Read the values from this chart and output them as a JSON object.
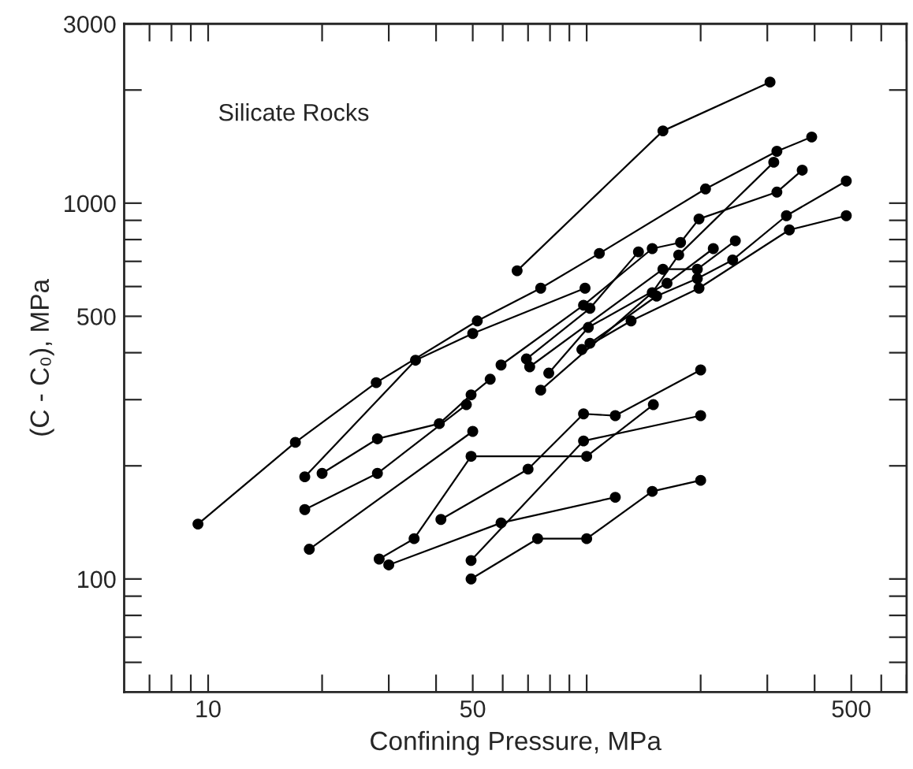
{
  "chart_data": {
    "type": "line",
    "xlabel": "Confining Pressure, MPa",
    "ylabel": "(C - C₀), MPa",
    "annotations": [
      "Silicate Rocks"
    ],
    "log": "xy",
    "grid": false,
    "legend": false,
    "marker": "circle",
    "line_style": "solid",
    "xlim": [
      6,
      700
    ],
    "xticks": [
      {
        "value": 7,
        "label": null
      },
      {
        "value": 8,
        "label": null
      },
      {
        "value": 9,
        "label": null
      },
      10,
      {
        "value": 20,
        "label": null
      },
      {
        "value": 30,
        "label": null
      },
      {
        "value": 40,
        "label": null
      },
      50,
      {
        "value": 60,
        "label": null
      },
      {
        "value": 70,
        "label": null
      },
      {
        "value": 80,
        "label": null
      },
      {
        "value": 90,
        "label": null
      },
      {
        "value": 100,
        "label": null
      },
      {
        "value": 200,
        "label": null
      },
      {
        "value": 300,
        "label": null
      },
      {
        "value": 400,
        "label": null
      },
      500,
      {
        "value": 600,
        "label": null
      },
      {
        "value": 700,
        "label": null
      }
    ],
    "ylim": [
      50,
      3000
    ],
    "yticks": [
      {
        "value": 60,
        "label": null
      },
      {
        "value": 70,
        "label": null
      },
      {
        "value": 80,
        "label": null
      },
      {
        "value": 90,
        "label": null
      },
      100,
      {
        "value": 200,
        "label": null
      },
      {
        "value": 300,
        "label": null
      },
      {
        "value": 400,
        "label": null
      },
      500,
      {
        "value": 600,
        "label": null
      },
      {
        "value": 700,
        "label": null
      },
      {
        "value": 800,
        "label": null
      },
      {
        "value": 900,
        "label": null
      },
      1000,
      {
        "value": 2000,
        "label": null
      },
      3000
    ],
    "series": [
      {
        "color": "#000000",
        "x": [
          65.5,
          159,
          305
        ],
        "values": [
          661,
          1557,
          2100
        ]
      },
      {
        "color": "#000000",
        "x": [
          9.4,
          17.0,
          27.8,
          51.4,
          75.6,
          108,
          206,
          318,
          393
        ],
        "values": [
          140,
          231,
          333,
          486,
          594,
          735,
          1091,
          1374,
          1500
        ]
      },
      {
        "color": "#000000",
        "x": [
          20,
          28,
          40.8,
          49.5,
          55.6
        ],
        "values": [
          191,
          236,
          259,
          309,
          340
        ]
      },
      {
        "color": "#000000",
        "x": [
          18.0,
          35.3,
          50,
          99
        ],
        "values": [
          187,
          382,
          450,
          594
        ]
      },
      {
        "color": "#000000",
        "x": [
          59.4,
          98.1,
          149,
          177,
          198,
          318,
          371
        ],
        "values": [
          371,
          535,
          757,
          786,
          908,
          1070,
          1224
        ]
      },
      {
        "color": "#000000",
        "x": [
          69.3,
          102,
          137
        ],
        "values": [
          385,
          525,
          742
        ]
      },
      {
        "color": "#000000",
        "x": [
          102,
          153,
          196,
          243,
          337,
          485
        ],
        "values": [
          424,
          566,
          630,
          706,
          926,
          1145
        ]
      },
      {
        "color": "#000000",
        "x": [
          79.4,
          101,
          163,
          216
        ],
        "values": [
          353,
          467,
          612,
          757
        ]
      },
      {
        "color": "#000000",
        "x": [
          97.1,
          131,
          198,
          343,
          485
        ],
        "values": [
          408,
          486,
          594,
          849,
          926
        ]
      },
      {
        "color": "#000000",
        "x": [
          75.6,
          149,
          175,
          312
        ],
        "values": [
          318,
          578,
          728,
          1285
        ]
      },
      {
        "color": "#000000",
        "x": [
          18.5,
          50
        ],
        "values": [
          120,
          247
        ]
      },
      {
        "color": "#000000",
        "x": [
          18.0,
          28.0,
          48.1
        ],
        "values": [
          153,
          191,
          291
        ]
      },
      {
        "color": "#000000",
        "x": [
          70.7,
          159,
          196,
          247
        ],
        "values": [
          367,
          667,
          667,
          794
        ]
      },
      {
        "color": "#000000",
        "x": [
          49.5,
          74.2,
          100,
          149,
          200
        ],
        "values": [
          100,
          128,
          128,
          171,
          183
        ]
      },
      {
        "color": "#000000",
        "x": [
          30,
          59.4,
          119
        ],
        "values": [
          109,
          141,
          165
        ]
      },
      {
        "color": "#000000",
        "x": [
          49.5,
          98.1,
          200
        ],
        "values": [
          112,
          233,
          272
        ]
      },
      {
        "color": "#000000",
        "x": [
          28.3,
          35,
          49.5,
          100,
          150
        ],
        "values": [
          113,
          128,
          212,
          212,
          291
        ]
      },
      {
        "color": "#000000",
        "x": [
          41.2,
          70,
          98.1,
          119,
          200
        ],
        "values": [
          144,
          196,
          275,
          272,
          360
        ]
      }
    ]
  }
}
